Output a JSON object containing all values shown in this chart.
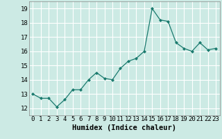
{
  "x": [
    0,
    1,
    2,
    3,
    4,
    5,
    6,
    7,
    8,
    9,
    10,
    11,
    12,
    13,
    14,
    15,
    16,
    17,
    18,
    19,
    20,
    21,
    22,
    23
  ],
  "y": [
    13.0,
    12.7,
    12.7,
    12.1,
    12.6,
    13.3,
    13.3,
    14.0,
    14.5,
    14.1,
    14.0,
    14.8,
    15.3,
    15.5,
    16.0,
    19.0,
    18.2,
    18.1,
    16.6,
    16.2,
    16.0,
    16.6,
    16.1,
    16.2
  ],
  "xlabel": "Humidex (Indice chaleur)",
  "xlim": [
    -0.5,
    23.5
  ],
  "ylim": [
    11.5,
    19.5
  ],
  "yticks": [
    12,
    13,
    14,
    15,
    16,
    17,
    18,
    19
  ],
  "xticks": [
    0,
    1,
    2,
    3,
    4,
    5,
    6,
    7,
    8,
    9,
    10,
    11,
    12,
    13,
    14,
    15,
    16,
    17,
    18,
    19,
    20,
    21,
    22,
    23
  ],
  "line_color": "#1a7a6e",
  "marker": "D",
  "marker_size": 2.0,
  "linewidth": 0.9,
  "bg_color": "#cceae4",
  "grid_color": "#ffffff",
  "tick_fontsize": 6.5,
  "xlabel_fontsize": 7.5,
  "spine_color": "#888888"
}
